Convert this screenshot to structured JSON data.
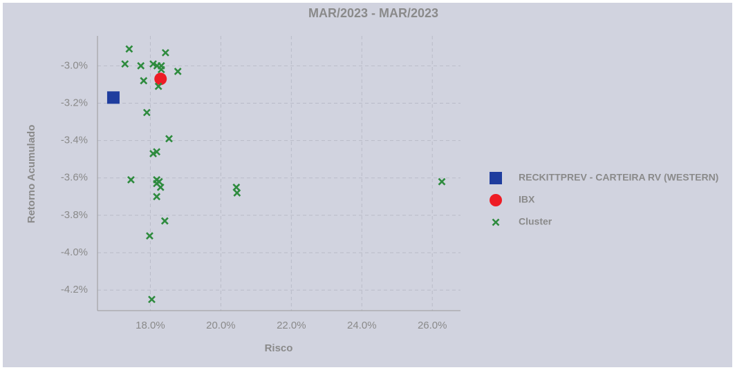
{
  "chart_data": {
    "type": "scatter",
    "title": "MAR/2023 - MAR/2023",
    "xlabel": "Risco",
    "ylabel": "Retorno Acumulado",
    "xlim": [
      16.5,
      26.8
    ],
    "ylim": [
      -4.31,
      -2.84
    ],
    "xticks": [
      {
        "value": 18,
        "label": "18.0%"
      },
      {
        "value": 20,
        "label": "20.0%"
      },
      {
        "value": 22,
        "label": "22.0%"
      },
      {
        "value": 24,
        "label": "24.0%"
      },
      {
        "value": 26,
        "label": "26.0%"
      }
    ],
    "yticks": [
      {
        "value": -3.0,
        "label": "-3.0%"
      },
      {
        "value": -3.2,
        "label": "-3.2%"
      },
      {
        "value": -3.4,
        "label": "-3.4%"
      },
      {
        "value": -3.6,
        "label": "-3.6%"
      },
      {
        "value": -3.8,
        "label": "-3.8%"
      },
      {
        "value": -4.0,
        "label": "-4.0%"
      },
      {
        "value": -4.2,
        "label": "-4.2%"
      }
    ],
    "grid": true,
    "series": [
      {
        "name": "RECKITTPREV - CARTEIRA RV (WESTERN)",
        "color": "#1f3d9e",
        "marker": "square",
        "x": [
          16.95
        ],
        "values": [
          -3.17
        ]
      },
      {
        "name": "IBX",
        "color": "#ee1c25",
        "marker": "circle",
        "x": [
          18.29
        ],
        "values": [
          -3.07
        ]
      },
      {
        "name": "Cluster",
        "color": "#2e8b3e",
        "marker": "x",
        "x": [
          17.4,
          18.43,
          17.28,
          17.73,
          18.08,
          18.19,
          18.31,
          18.31,
          18.78,
          17.81,
          18.23,
          17.9,
          18.53,
          18.18,
          18.08,
          17.45,
          18.18,
          18.25,
          18.18,
          18.29,
          20.44,
          20.46,
          18.18,
          18.41,
          17.98,
          18.04,
          26.27
        ],
        "values": [
          -2.91,
          -2.93,
          -2.99,
          -3.0,
          -2.99,
          -3.0,
          -3.0,
          -3.02,
          -3.03,
          -3.08,
          -3.11,
          -3.25,
          -3.39,
          -3.46,
          -3.47,
          -3.61,
          -3.61,
          -3.62,
          -3.63,
          -3.65,
          -3.65,
          -3.68,
          -3.7,
          -3.83,
          -3.91,
          -4.25,
          -3.62
        ]
      }
    ]
  }
}
